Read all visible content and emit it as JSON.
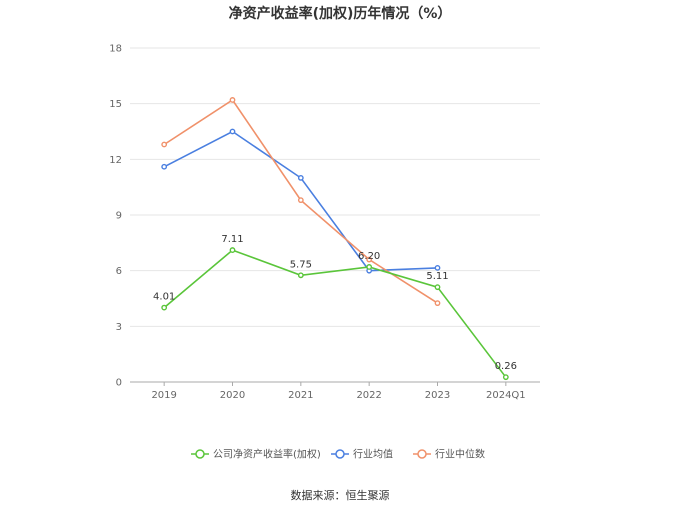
{
  "chart_data": {
    "type": "line",
    "title": "净资产收益率(加权)历年情况（%）",
    "categories": [
      "2019",
      "2020",
      "2021",
      "2022",
      "2023",
      "2024Q1"
    ],
    "ylim": [
      0,
      18
    ],
    "yticks": [
      0,
      3,
      6,
      9,
      12,
      15,
      18
    ],
    "grid": true,
    "legend_position": "bottom",
    "series": [
      {
        "name": "公司净资产收益率(加权)",
        "color": "#5ac53a",
        "values": [
          4.01,
          7.11,
          5.75,
          6.2,
          5.11,
          0.26
        ],
        "labels": [
          "4.01",
          "7.11",
          "5.75",
          "6.20",
          "5.11",
          "0.26"
        ]
      },
      {
        "name": "行业均值",
        "color": "#4a7fe0",
        "values": [
          11.6,
          13.5,
          11.0,
          6.0,
          6.15,
          null
        ]
      },
      {
        "name": "行业中位数",
        "color": "#f0916a",
        "values": [
          12.8,
          15.2,
          9.8,
          6.6,
          4.25,
          null
        ]
      }
    ]
  },
  "source": "数据来源：恒生聚源"
}
